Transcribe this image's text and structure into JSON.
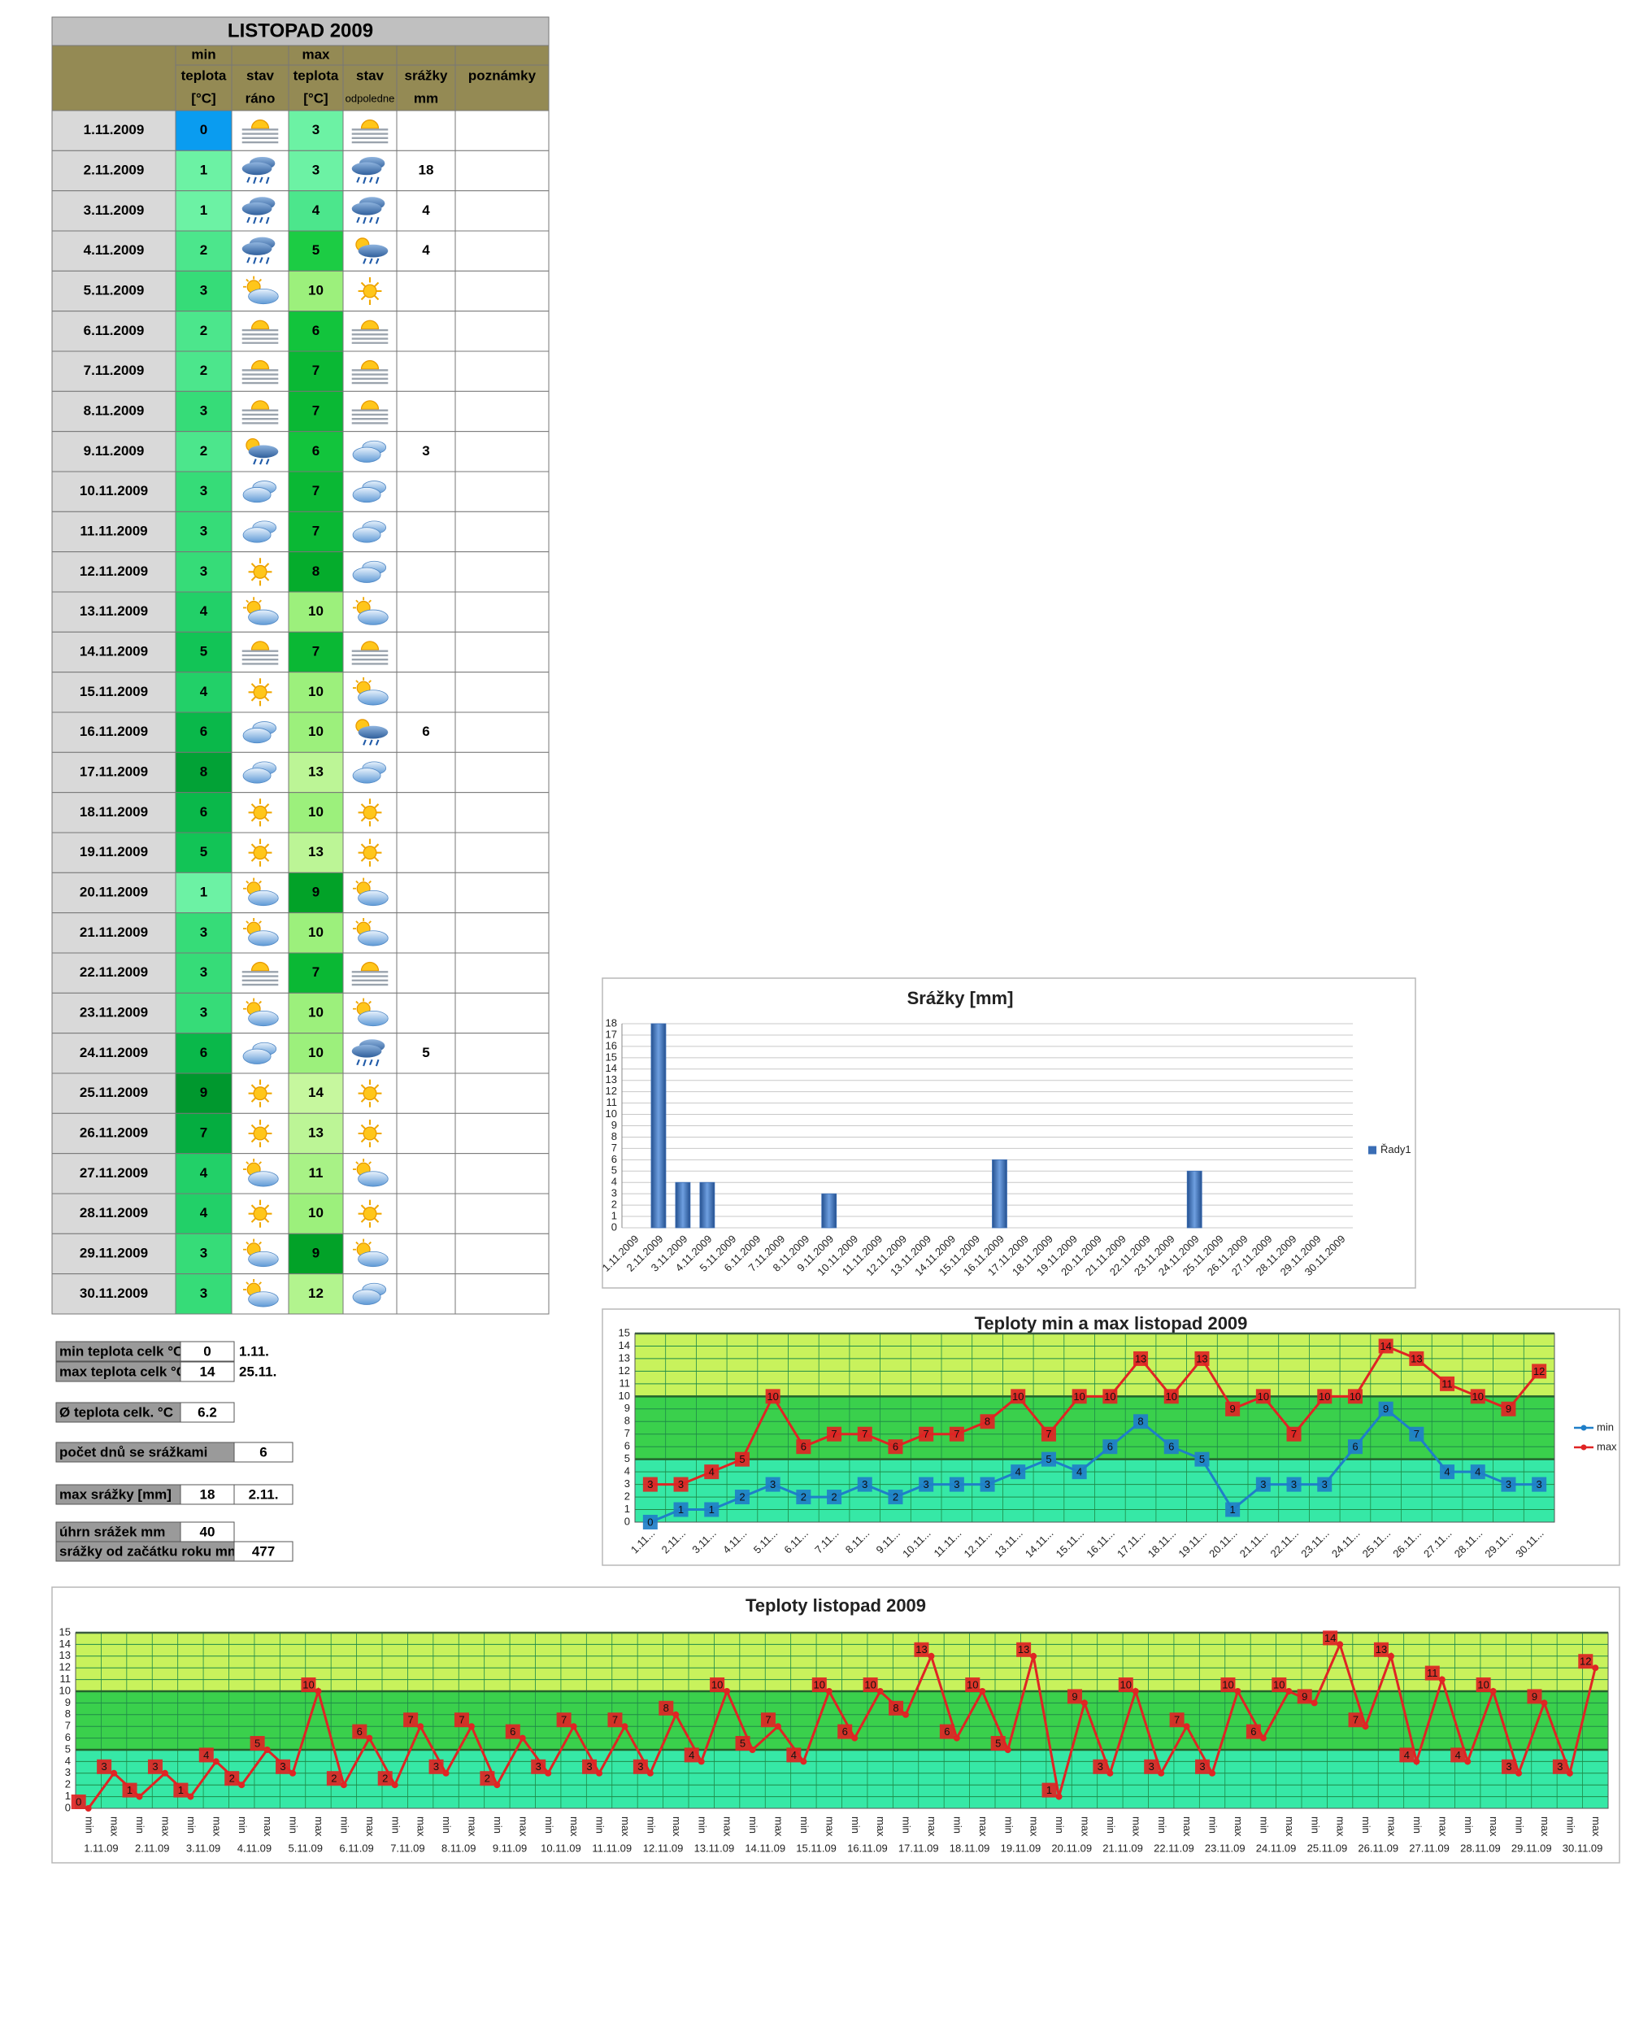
{
  "table": {
    "title": "LISTOPAD 2009",
    "header": {
      "min": "min",
      "max": "max",
      "teplota": "teplota",
      "stav": "stav",
      "srazky": "srážky",
      "poznamky": "poznámky",
      "unit": "[°C]",
      "rano": "ráno",
      "odpoledne": "odpoledne",
      "mm": "mm"
    },
    "min_colors": {
      "0": "#0a9cf0",
      "1": "#6cf2a4",
      "2": "#4ce68c",
      "3": "#36dc78",
      "4": "#22d068",
      "5": "#12c456",
      "6": "#0ab84a",
      "7": "#05ad40",
      "8": "#02a236",
      "9": "#00982e"
    },
    "max_colors": {
      "3": "#6cf2a4",
      "4": "#4ce68c",
      "5": "#1ccc44",
      "6": "#12c43c",
      "7": "#0ab834",
      "8": "#05ac2c",
      "9": "#02a228",
      "10": "#9cf07c",
      "11": "#a8f286",
      "12": "#b2f48e",
      "13": "#bcf596",
      "14": "#c6f79e"
    },
    "rows": [
      {
        "date": "1.11.2009",
        "min": 0,
        "max": 3,
        "srazky": null
      },
      {
        "date": "2.11.2009",
        "min": 1,
        "max": 3,
        "srazky": 18
      },
      {
        "date": "3.11.2009",
        "min": 1,
        "max": 4,
        "srazky": 4
      },
      {
        "date": "4.11.2009",
        "min": 2,
        "max": 5,
        "srazky": 4
      },
      {
        "date": "5.11.2009",
        "min": 3,
        "max": 10,
        "srazky": null
      },
      {
        "date": "6.11.2009",
        "min": 2,
        "max": 6,
        "srazky": null
      },
      {
        "date": "7.11.2009",
        "min": 2,
        "max": 7,
        "srazky": null
      },
      {
        "date": "8.11.2009",
        "min": 3,
        "max": 7,
        "srazky": null
      },
      {
        "date": "9.11.2009",
        "min": 2,
        "max": 6,
        "srazky": 3
      },
      {
        "date": "10.11.2009",
        "min": 3,
        "max": 7,
        "srazky": null
      },
      {
        "date": "11.11.2009",
        "min": 3,
        "max": 7,
        "srazky": null
      },
      {
        "date": "12.11.2009",
        "min": 3,
        "max": 8,
        "srazky": null
      },
      {
        "date": "13.11.2009",
        "min": 4,
        "max": 10,
        "srazky": null
      },
      {
        "date": "14.11.2009",
        "min": 5,
        "max": 7,
        "srazky": null
      },
      {
        "date": "15.11.2009",
        "min": 4,
        "max": 10,
        "srazky": null
      },
      {
        "date": "16.11.2009",
        "min": 6,
        "max": 10,
        "srazky": 6
      },
      {
        "date": "17.11.2009",
        "min": 8,
        "max": 13,
        "srazky": null
      },
      {
        "date": "18.11.2009",
        "min": 6,
        "max": 10,
        "srazky": null
      },
      {
        "date": "19.11.2009",
        "min": 5,
        "max": 13,
        "srazky": null
      },
      {
        "date": "20.11.2009",
        "min": 1,
        "max": 9,
        "srazky": null
      },
      {
        "date": "21.11.2009",
        "min": 3,
        "max": 10,
        "srazky": null
      },
      {
        "date": "22.11.2009",
        "min": 3,
        "max": 7,
        "srazky": null
      },
      {
        "date": "23.11.2009",
        "min": 3,
        "max": 10,
        "srazky": null
      },
      {
        "date": "24.11.2009",
        "min": 6,
        "max": 10,
        "srazky": 5
      },
      {
        "date": "25.11.2009",
        "min": 9,
        "max": 14,
        "srazky": null
      },
      {
        "date": "26.11.2009",
        "min": 7,
        "max": 13,
        "srazky": null
      },
      {
        "date": "27.11.2009",
        "min": 4,
        "max": 11,
        "srazky": null
      },
      {
        "date": "28.11.2009",
        "min": 4,
        "max": 10,
        "srazky": null
      },
      {
        "date": "29.11.2009",
        "min": 3,
        "max": 9,
        "srazky": null
      },
      {
        "date": "30.11.2009",
        "min": 3,
        "max": 12,
        "srazky": null
      }
    ]
  },
  "summary": [
    {
      "label": "min teplota celk °C",
      "value": 0,
      "date": "1.11."
    },
    {
      "label": "max teplota celk °C",
      "value": 14,
      "date": "25.11."
    },
    {
      "label": "Ø teplota celk. °C",
      "value": 6.2
    },
    {
      "label": "počet dnů se srážkami",
      "value": 6
    },
    {
      "label": "max srážky [mm]",
      "value": 18,
      "date": "2.11."
    },
    {
      "label": "úhrn srážek  mm",
      "value": 40
    },
    {
      "label": "srážky od začátku roku mm",
      "value": 477
    }
  ],
  "chart_data": [
    {
      "type": "bar",
      "title": "Srážky [mm]",
      "categories": [
        "1.11.2009",
        "2.11.2009",
        "3.11.2009",
        "4.11.2009",
        "5.11.2009",
        "6.11.2009",
        "7.11.2009",
        "8.11.2009",
        "9.11.2009",
        "10.11.2009",
        "11.11.2009",
        "12.11.2009",
        "13.11.2009",
        "14.11.2009",
        "15.11.2009",
        "16.11.2009",
        "17.11.2009",
        "18.11.2009",
        "19.11.2009",
        "20.11.2009",
        "21.11.2009",
        "22.11.2009",
        "23.11.2009",
        "24.11.2009",
        "25.11.2009",
        "26.11.2009",
        "27.11.2009",
        "28.11.2009",
        "29.11.2009",
        "30.11.2009"
      ],
      "series": [
        {
          "name": "Řady1",
          "color": "#3a6db5",
          "values": [
            null,
            18,
            4,
            4,
            null,
            null,
            null,
            null,
            3,
            null,
            null,
            null,
            null,
            null,
            null,
            6,
            null,
            null,
            null,
            null,
            null,
            null,
            null,
            5,
            null,
            null,
            null,
            null,
            null,
            null
          ]
        }
      ],
      "ylim": [
        0,
        18
      ],
      "yticks": [
        0,
        1,
        2,
        3,
        4,
        5,
        6,
        7,
        8,
        9,
        10,
        11,
        12,
        13,
        14,
        15,
        16,
        17,
        18
      ],
      "grid": true,
      "legend": "right"
    },
    {
      "type": "line",
      "title": "Teploty min a max listopad 2009",
      "categories": [
        "1.11...",
        "2.11...",
        "3.11...",
        "4.11...",
        "5.11...",
        "6.11...",
        "7.11...",
        "8.11...",
        "9.11...",
        "10.11...",
        "11.11...",
        "12.11...",
        "13.11...",
        "14.11...",
        "15.11...",
        "16.11...",
        "17.11...",
        "18.11...",
        "19.11...",
        "20.11...",
        "21.11...",
        "22.11...",
        "23.11...",
        "24.11...",
        "25.11...",
        "26.11...",
        "27.11...",
        "28.11...",
        "29.11...",
        "30.11..."
      ],
      "series": [
        {
          "name": "min",
          "color": "#1f7fc8",
          "values": [
            0,
            1,
            1,
            2,
            3,
            2,
            2,
            3,
            2,
            3,
            3,
            3,
            4,
            5,
            4,
            6,
            8,
            6,
            5,
            1,
            3,
            3,
            3,
            6,
            9,
            7,
            4,
            4,
            3,
            3
          ]
        },
        {
          "name": "max",
          "color": "#e02424",
          "values": [
            3,
            3,
            4,
            5,
            10,
            6,
            7,
            7,
            6,
            7,
            7,
            8,
            10,
            7,
            10,
            10,
            13,
            10,
            13,
            9,
            10,
            7,
            10,
            10,
            14,
            13,
            11,
            10,
            9,
            12
          ]
        }
      ],
      "ylim": [
        0,
        15
      ],
      "yticks": [
        0,
        1,
        2,
        3,
        4,
        5,
        6,
        7,
        8,
        9,
        10,
        11,
        12,
        13,
        14,
        15
      ],
      "grid": true,
      "legend": "right",
      "bands": [
        {
          "from": 0,
          "to": 5,
          "color": "#36e8a6"
        },
        {
          "from": 5,
          "to": 10,
          "color": "#3ad04c"
        },
        {
          "from": 10,
          "to": 15,
          "color": "#c8f25c"
        }
      ]
    },
    {
      "type": "line",
      "title": "Teploty listopad 2009",
      "categories": [
        "min",
        "max",
        "min",
        "max",
        "min",
        "max",
        "min",
        "max",
        "min",
        "max",
        "min",
        "max",
        "min",
        "max",
        "min",
        "max",
        "min",
        "max",
        "min",
        "max",
        "min",
        "max",
        "min",
        "max",
        "min",
        "max",
        "min",
        "max",
        "min",
        "max",
        "min",
        "max",
        "min",
        "max",
        "min",
        "max",
        "min",
        "max",
        "min",
        "max",
        "min",
        "max",
        "min",
        "max",
        "min",
        "max",
        "min",
        "max",
        "min",
        "max",
        "min",
        "max",
        "min",
        "max",
        "min",
        "max",
        "min",
        "max",
        "min",
        "max"
      ],
      "groups": [
        "1.11.09",
        "2.11.09",
        "3.11.09",
        "4.11.09",
        "5.11.09",
        "6.11.09",
        "7.11.09",
        "8.11.09",
        "9.11.09",
        "10.11.09",
        "11.11.09",
        "12.11.09",
        "13.11.09",
        "14.11.09",
        "15.11.09",
        "16.11.09",
        "17.11.09",
        "18.11.09",
        "19.11.09",
        "20.11.09",
        "21.11.09",
        "22.11.09",
        "23.11.09",
        "24.11.09",
        "25.11.09",
        "26.11.09",
        "27.11.09",
        "28.11.09",
        "29.11.09",
        "30.11.09"
      ],
      "color": "#e02424",
      "values": [
        0,
        3,
        1,
        3,
        1,
        4,
        2,
        5,
        3,
        10,
        2,
        6,
        2,
        7,
        3,
        7,
        2,
        6,
        3,
        7,
        3,
        7,
        3,
        8,
        4,
        10,
        5,
        7,
        4,
        10,
        6,
        10,
        8,
        13,
        6,
        10,
        5,
        13,
        1,
        9,
        3,
        10,
        3,
        7,
        3,
        10,
        6,
        10,
        9,
        14,
        7,
        13,
        4,
        11,
        4,
        10,
        3,
        9,
        3,
        12
      ],
      "ylim": [
        0,
        15
      ],
      "yticks": [
        0,
        1,
        2,
        3,
        4,
        5,
        6,
        7,
        8,
        9,
        10,
        11,
        12,
        13,
        14,
        15
      ],
      "grid": true,
      "bands": [
        {
          "from": 0,
          "to": 5,
          "color": "#36e8a6"
        },
        {
          "from": 5,
          "to": 10,
          "color": "#3ad04c"
        },
        {
          "from": 10,
          "to": 15,
          "color": "#c8f25c"
        }
      ]
    }
  ]
}
